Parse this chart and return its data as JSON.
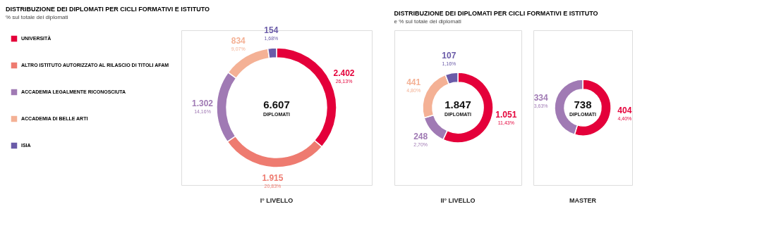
{
  "chart_data": [
    {
      "type": "donut",
      "title": "DISTRIBUZIONE DEI DIPLOMATI PER CICLI FORMATIVI E ISTITUTO",
      "subtitle": "% sul totale dei diplomati",
      "xlabel": "I° LIVELLO",
      "legend": "left",
      "categories": [
        "UNIVERSITÀ",
        "ALTRO ISTITUTO AUTORIZZATO AL RILASCIO DI TITOLI AFAM",
        "ACCADEMIA LEGALMENTE RICONOSCIUTA",
        "ACCADEMIA DI BELLE ARTI",
        "ISIA"
      ],
      "values": [
        2402,
        1915,
        1302,
        834,
        154
      ],
      "colors": [
        "#e4003a",
        "#ee7b70",
        "#a07ab4",
        "#f4b195",
        "#6a5ba8"
      ],
      "value_labels": [
        "2.402",
        "1.915",
        "1.302",
        "834",
        "154"
      ],
      "annotations": [
        "6.607",
        "DIPLOMATI",
        "26,13%",
        "20,83%",
        "14,16%",
        "9,07%",
        "1,68%"
      ]
    },
    {
      "type": "donut",
      "title": "DISTRIBUZIONE DEI DIPLOMATI PER CICLI FORMATIVI E ISTITUTO",
      "subtitle": "e % sul totale dei diplomati",
      "xlabel": "II° LIVELLO",
      "categories": [
        null,
        null,
        null,
        null
      ],
      "values": [
        1051,
        248,
        441,
        107
      ],
      "colors": [
        "#e4003a",
        "#a07ab4",
        "#f4b195",
        "#6a5ba8"
      ],
      "value_labels": [
        "1.051",
        "248",
        "441",
        "107"
      ],
      "annotations": [
        "1.847",
        "DIPLOMATI",
        "11,43%",
        "2,70%",
        "4,80%",
        "1,16%"
      ]
    },
    {
      "type": "donut",
      "xlabel": "MASTER",
      "categories": [
        null,
        null
      ],
      "values": [
        404,
        334
      ],
      "colors": [
        "#e4003a",
        "#a07ab4"
      ],
      "value_labels": [
        "404",
        "334"
      ],
      "annotations": [
        "738",
        "DIPLOMATI",
        "4,40%",
        "3,63%"
      ]
    }
  ]
}
